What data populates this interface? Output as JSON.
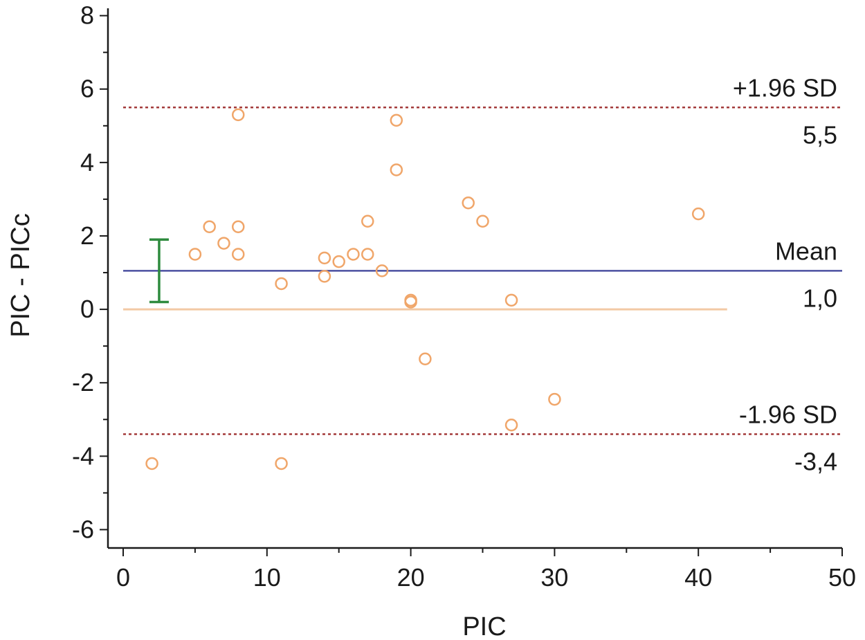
{
  "chart_data": {
    "type": "scatter",
    "xlabel": "PIC",
    "ylabel": "PIC - PICc",
    "xlim": [
      0,
      50
    ],
    "ylim": [
      -6.5,
      8.2
    ],
    "xticks": [
      "0",
      "10",
      "20",
      "30",
      "40",
      "50"
    ],
    "yticks": [
      "-6",
      "-4",
      "-2",
      "0",
      "2",
      "4",
      "6",
      "8"
    ],
    "grid": false,
    "points": [
      {
        "x": 2,
        "y": -4.2
      },
      {
        "x": 5,
        "y": 1.5
      },
      {
        "x": 6,
        "y": 2.25
      },
      {
        "x": 7,
        "y": 1.8
      },
      {
        "x": 8,
        "y": 5.3
      },
      {
        "x": 8,
        "y": 2.25
      },
      {
        "x": 8,
        "y": 1.5
      },
      {
        "x": 11,
        "y": 0.7
      },
      {
        "x": 11,
        "y": -4.2
      },
      {
        "x": 14,
        "y": 1.4
      },
      {
        "x": 14,
        "y": 0.9
      },
      {
        "x": 15,
        "y": 1.3
      },
      {
        "x": 16,
        "y": 1.5
      },
      {
        "x": 17,
        "y": 2.4
      },
      {
        "x": 17,
        "y": 1.5
      },
      {
        "x": 18,
        "y": 1.05
      },
      {
        "x": 19,
        "y": 5.15
      },
      {
        "x": 19,
        "y": 3.8
      },
      {
        "x": 20,
        "y": 0.25
      },
      {
        "x": 20,
        "y": 0.2
      },
      {
        "x": 21,
        "y": -1.35
      },
      {
        "x": 24,
        "y": 2.9
      },
      {
        "x": 25,
        "y": 2.4
      },
      {
        "x": 27,
        "y": 0.25
      },
      {
        "x": 27,
        "y": -3.15
      },
      {
        "x": 30,
        "y": -2.45
      },
      {
        "x": 40,
        "y": 2.6
      }
    ],
    "reference_lines": [
      {
        "name": "+1.96 SD",
        "value": 5.5,
        "value_label": "5,5",
        "style": "dashed",
        "color": "#a33a3a"
      },
      {
        "name": "Mean",
        "value": 1.05,
        "value_label": "1,0",
        "style": "solid",
        "color": "#4a4fa0"
      },
      {
        "name": "-1.96 SD",
        "value": -3.4,
        "value_label": "-3,4",
        "style": "dashed",
        "color": "#a33a3a"
      }
    ],
    "zero_line": {
      "value": 0,
      "x_end": 42,
      "color": "#f2c9a4"
    },
    "mean_ci": {
      "x": 2.5,
      "low": 0.2,
      "high": 1.9,
      "color": "#2e8b3e"
    },
    "colors": {
      "point": "#f0a66a",
      "axis": "#1a1a1a"
    }
  }
}
